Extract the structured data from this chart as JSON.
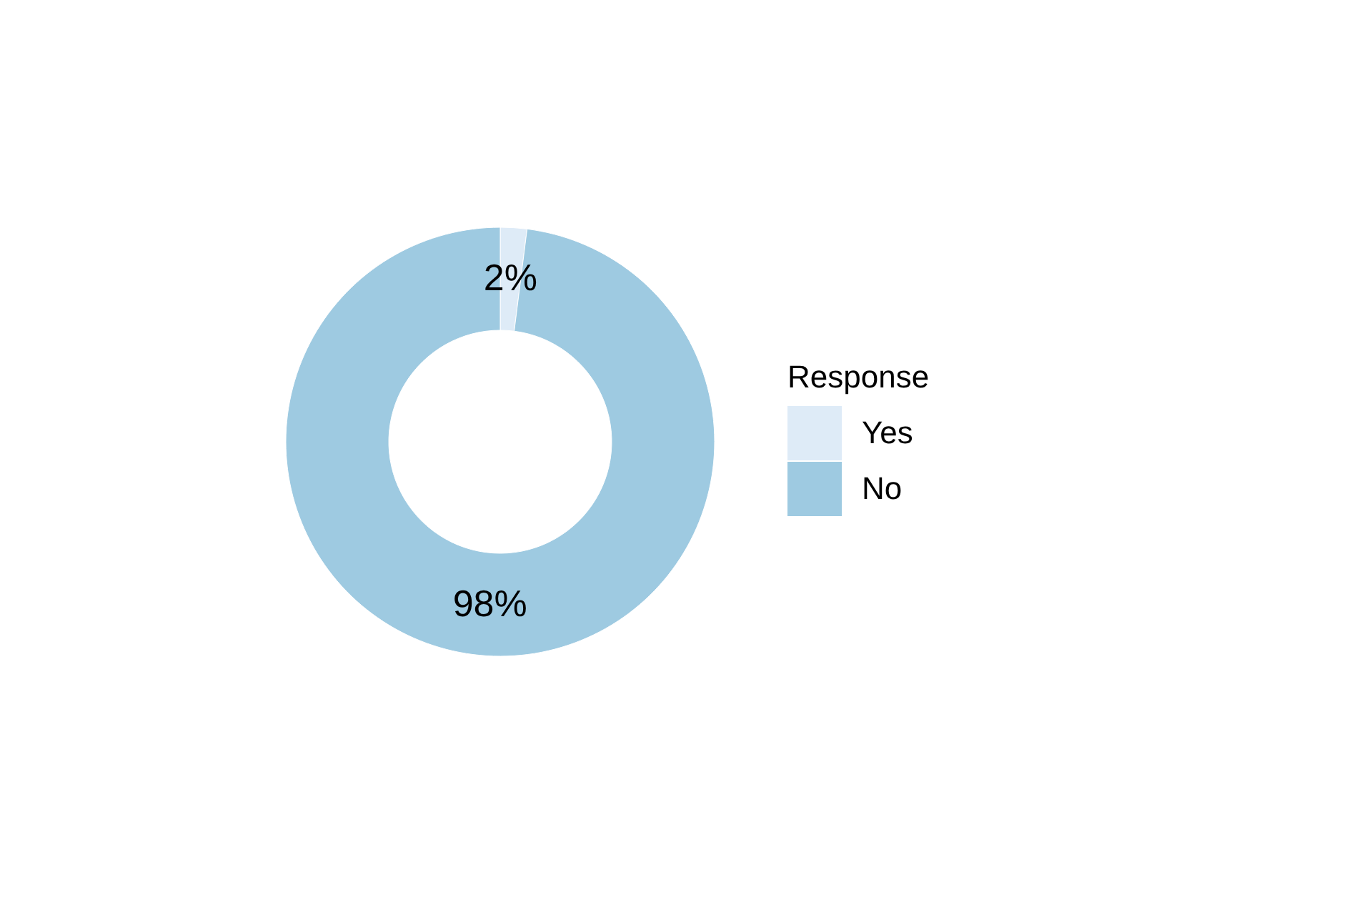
{
  "chart_data": {
    "type": "donut",
    "legend_title": "Response",
    "legend": "right",
    "categories": [
      "Yes",
      "No"
    ],
    "values": [
      2,
      98
    ],
    "value_labels": [
      "2%",
      "98%"
    ],
    "colors": [
      "#deebf7",
      "#9ecae1"
    ]
  }
}
